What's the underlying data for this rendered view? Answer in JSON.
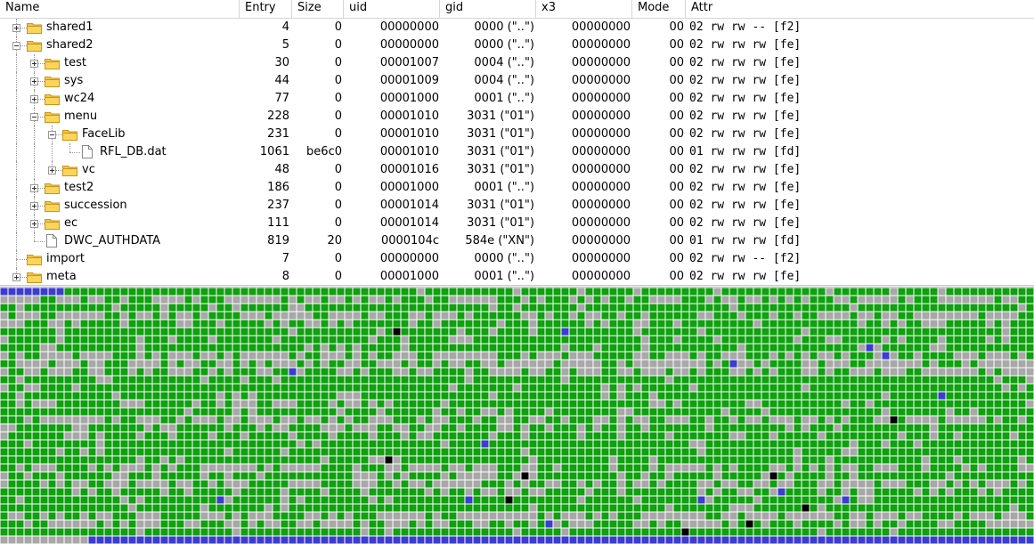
{
  "columns": {
    "name": "Name",
    "entry": "Entry",
    "size": "Size",
    "uid": "uid",
    "gid": "gid",
    "x3": "x3",
    "mode": "Mode",
    "attr": "Attr"
  },
  "rows": [
    {
      "name": "shared1",
      "type": "folder",
      "expander": "plus",
      "depth": 1,
      "entry": "4",
      "size": "0",
      "uid": "00000000",
      "gid": "0000 (\"..\")",
      "x3": "00000000",
      "mode": "00",
      "attr": "02 rw rw -- [f2]"
    },
    {
      "name": "shared2",
      "type": "folder",
      "expander": "minus",
      "depth": 1,
      "entry": "5",
      "size": "0",
      "uid": "00000000",
      "gid": "0000 (\"..\")",
      "x3": "00000000",
      "mode": "00",
      "attr": "02 rw rw rw [fe]"
    },
    {
      "name": "test",
      "type": "folder",
      "expander": "plus",
      "depth": 2,
      "entry": "30",
      "size": "0",
      "uid": "00001007",
      "gid": "0004 (\"..\")",
      "x3": "00000000",
      "mode": "00",
      "attr": "02 rw rw rw [fe]"
    },
    {
      "name": "sys",
      "type": "folder",
      "expander": "plus",
      "depth": 2,
      "entry": "44",
      "size": "0",
      "uid": "00001009",
      "gid": "0004 (\"..\")",
      "x3": "00000000",
      "mode": "00",
      "attr": "02 rw rw rw [fe]"
    },
    {
      "name": "wc24",
      "type": "folder",
      "expander": "plus",
      "depth": 2,
      "entry": "77",
      "size": "0",
      "uid": "00001000",
      "gid": "0001 (\"..\")",
      "x3": "00000000",
      "mode": "00",
      "attr": "02 rw rw rw [fe]"
    },
    {
      "name": "menu",
      "type": "folder",
      "expander": "minus",
      "depth": 2,
      "entry": "228",
      "size": "0",
      "uid": "00001010",
      "gid": "3031 (\"01\")",
      "x3": "00000000",
      "mode": "00",
      "attr": "02 rw rw rw [fe]"
    },
    {
      "name": "FaceLib",
      "type": "folder",
      "expander": "minus",
      "depth": 3,
      "entry": "231",
      "size": "0",
      "uid": "00001010",
      "gid": "3031 (\"01\")",
      "x3": "00000000",
      "mode": "00",
      "attr": "02 rw rw rw [fe]"
    },
    {
      "name": "RFL_DB.dat",
      "type": "file",
      "expander": "none",
      "depth": 4,
      "entry": "1061",
      "size": "be6c0",
      "uid": "00001010",
      "gid": "3031 (\"01\")",
      "x3": "00000000",
      "mode": "00",
      "attr": "01 rw rw rw [fd]"
    },
    {
      "name": "vc",
      "type": "folder",
      "expander": "plus",
      "depth": 3,
      "entry": "48",
      "size": "0",
      "uid": "00001016",
      "gid": "3031 (\"01\")",
      "x3": "00000000",
      "mode": "00",
      "attr": "02 rw rw rw [fe]"
    },
    {
      "name": "test2",
      "type": "folder",
      "expander": "plus",
      "depth": 2,
      "entry": "186",
      "size": "0",
      "uid": "00001000",
      "gid": "0001 (\"..\")",
      "x3": "00000000",
      "mode": "00",
      "attr": "02 rw rw rw [fe]"
    },
    {
      "name": "succession",
      "type": "folder",
      "expander": "plus",
      "depth": 2,
      "entry": "237",
      "size": "0",
      "uid": "00001014",
      "gid": "3031 (\"01\")",
      "x3": "00000000",
      "mode": "00",
      "attr": "02 rw rw rw [fe]"
    },
    {
      "name": "ec",
      "type": "folder",
      "expander": "plus",
      "depth": 2,
      "entry": "111",
      "size": "0",
      "uid": "00001014",
      "gid": "3031 (\"01\")",
      "x3": "00000000",
      "mode": "00",
      "attr": "02 rw rw rw [fe]"
    },
    {
      "name": "DWC_AUTHDATA",
      "type": "file",
      "expander": "none",
      "depth": 2,
      "entry": "819",
      "size": "20",
      "uid": "0000104c",
      "gid": "584e (\"XN\")",
      "x3": "00000000",
      "mode": "00",
      "attr": "01 rw rw rw [fd]"
    },
    {
      "name": "import",
      "type": "folder",
      "expander": "none",
      "depth": 1,
      "entry": "7",
      "size": "0",
      "uid": "00000000",
      "gid": "0000 (\"..\")",
      "x3": "00000000",
      "mode": "00",
      "attr": "02 rw rw -- [f2]"
    },
    {
      "name": "meta",
      "type": "folder",
      "expander": "plus",
      "depth": 1,
      "entry": "8",
      "size": "0",
      "uid": "00001000",
      "gid": "0001 (\"..\")",
      "x3": "00000000",
      "mode": "00",
      "attr": "02 rw rw rw [fe]"
    }
  ],
  "block_map": {
    "legend_colors": {
      "used": "#10a010",
      "free": "#a8a8a8",
      "reserved": "#3c3cd2",
      "bad": "#000000"
    }
  }
}
